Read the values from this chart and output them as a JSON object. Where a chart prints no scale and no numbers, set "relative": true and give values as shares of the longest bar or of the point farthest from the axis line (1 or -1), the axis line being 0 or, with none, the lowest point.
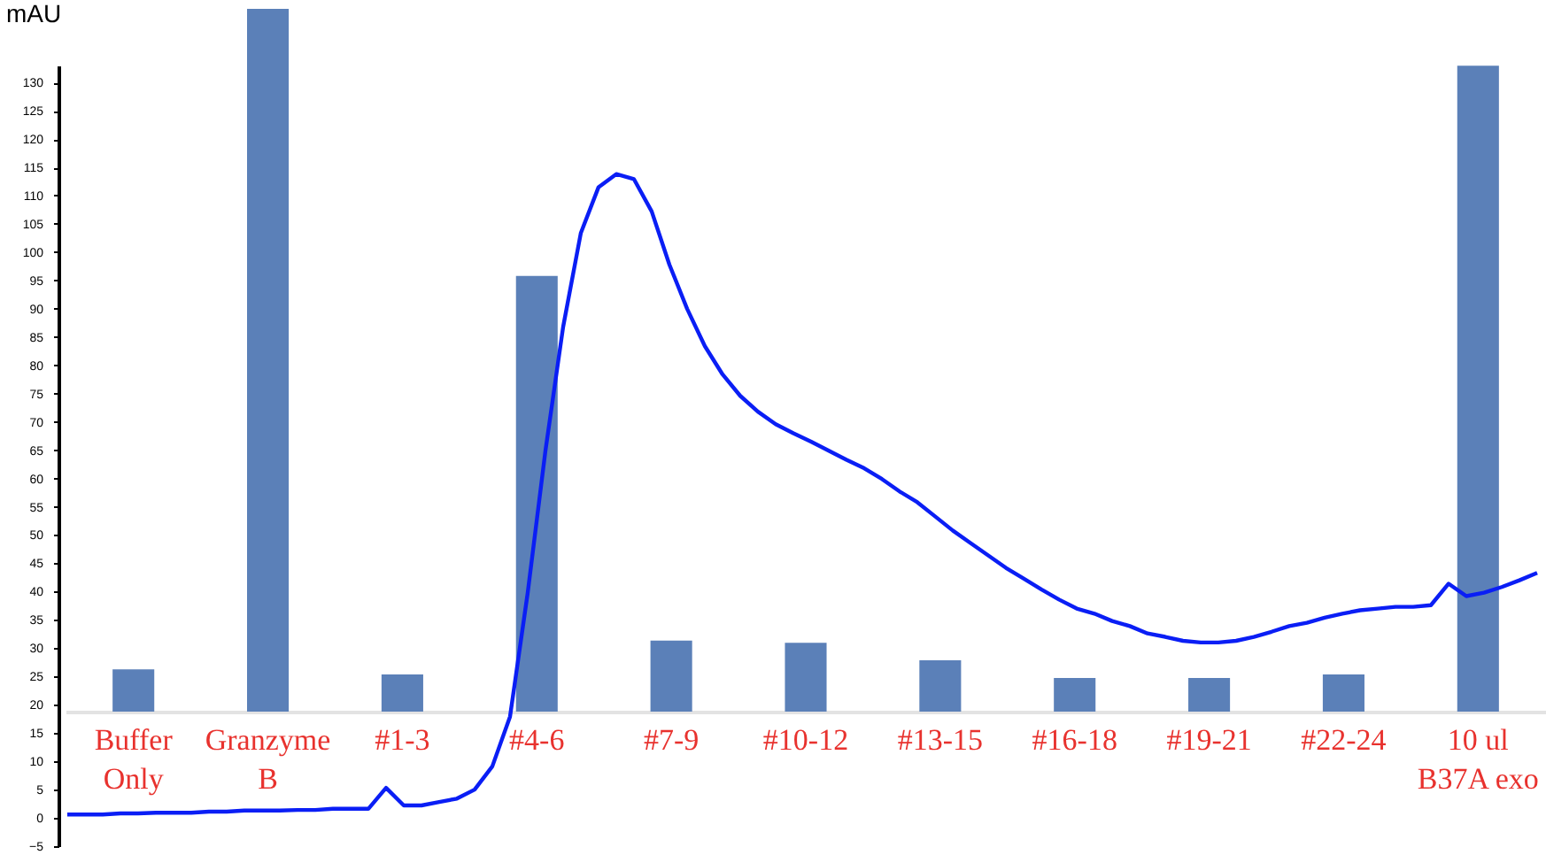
{
  "chart_data": [
    {
      "type": "bar",
      "categories": [
        "Buffer Only",
        "Granzyme B",
        "#1-3",
        "#4-6",
        "#7-9",
        "#10-12",
        "#13-15",
        "#16-18",
        "#19-21",
        "#22-24",
        "10 ul B37A exo"
      ],
      "values": [
        0.06,
        1,
        0.053,
        0.62,
        0.101,
        0.098,
        0.073,
        0.048,
        0.048,
        0.053,
        0.919
      ],
      "color": "#5b80b8",
      "relative": true
    },
    {
      "type": "line",
      "ylabel": "mAU",
      "color": "#0a1ef5",
      "tick_labels": "y",
      "categories": [
        null,
        null,
        null,
        null,
        null,
        null,
        null,
        null,
        null,
        null,
        null,
        null,
        null,
        null,
        null,
        null,
        null,
        null,
        null,
        null,
        null,
        null,
        null,
        null,
        null,
        null,
        null,
        null,
        null,
        null,
        null,
        null,
        null,
        null,
        null,
        null,
        null,
        null,
        null,
        null,
        null,
        null,
        null,
        null,
        null,
        null,
        null,
        null,
        null,
        null,
        null,
        null,
        null,
        null,
        null,
        null,
        null,
        null,
        null,
        null,
        null,
        null,
        null,
        null,
        null,
        null,
        null,
        null,
        null,
        null,
        null,
        null,
        null,
        null,
        null,
        null,
        null,
        null,
        null,
        null,
        null,
        null,
        null,
        null
      ],
      "values": [
        0.6,
        0.6,
        0.6,
        0.8,
        0.8,
        0.9,
        0.9,
        0.9,
        1.1,
        1.1,
        1.3,
        1.3,
        1.3,
        1.4,
        1.4,
        1.6,
        1.6,
        1.6,
        5.3,
        2.2,
        2.2,
        2.8,
        3.4,
        5.0,
        9.1,
        17.9,
        39.8,
        64.9,
        86.8,
        103.4,
        111.5,
        113.8,
        112.9,
        107.2,
        97.8,
        90.0,
        83.4,
        78.4,
        74.6,
        71.8,
        69.6,
        68.0,
        66.5,
        64.9,
        63.3,
        61.8,
        59.9,
        57.7,
        55.8,
        53.3,
        50.8,
        48.6,
        46.4,
        44.2,
        42.3,
        40.4,
        38.6,
        37.0,
        36.1,
        34.8,
        33.9,
        32.6,
        32.0,
        31.3,
        31.0,
        31.0,
        31.3,
        32.0,
        32.9,
        33.9,
        34.5,
        35.4,
        36.1,
        36.7,
        37.0,
        37.3,
        37.3,
        37.6,
        41.4,
        39.2,
        39.8,
        40.8,
        42.0,
        43.3
      ],
      "ylim": [
        -5,
        133
      ],
      "yticks": [
        -5,
        0,
        5,
        10,
        15,
        20,
        25,
        30,
        35,
        40,
        45,
        50,
        55,
        60,
        65,
        70,
        75,
        80,
        85,
        90,
        95,
        100,
        105,
        110,
        115,
        120,
        125,
        130
      ]
    }
  ]
}
